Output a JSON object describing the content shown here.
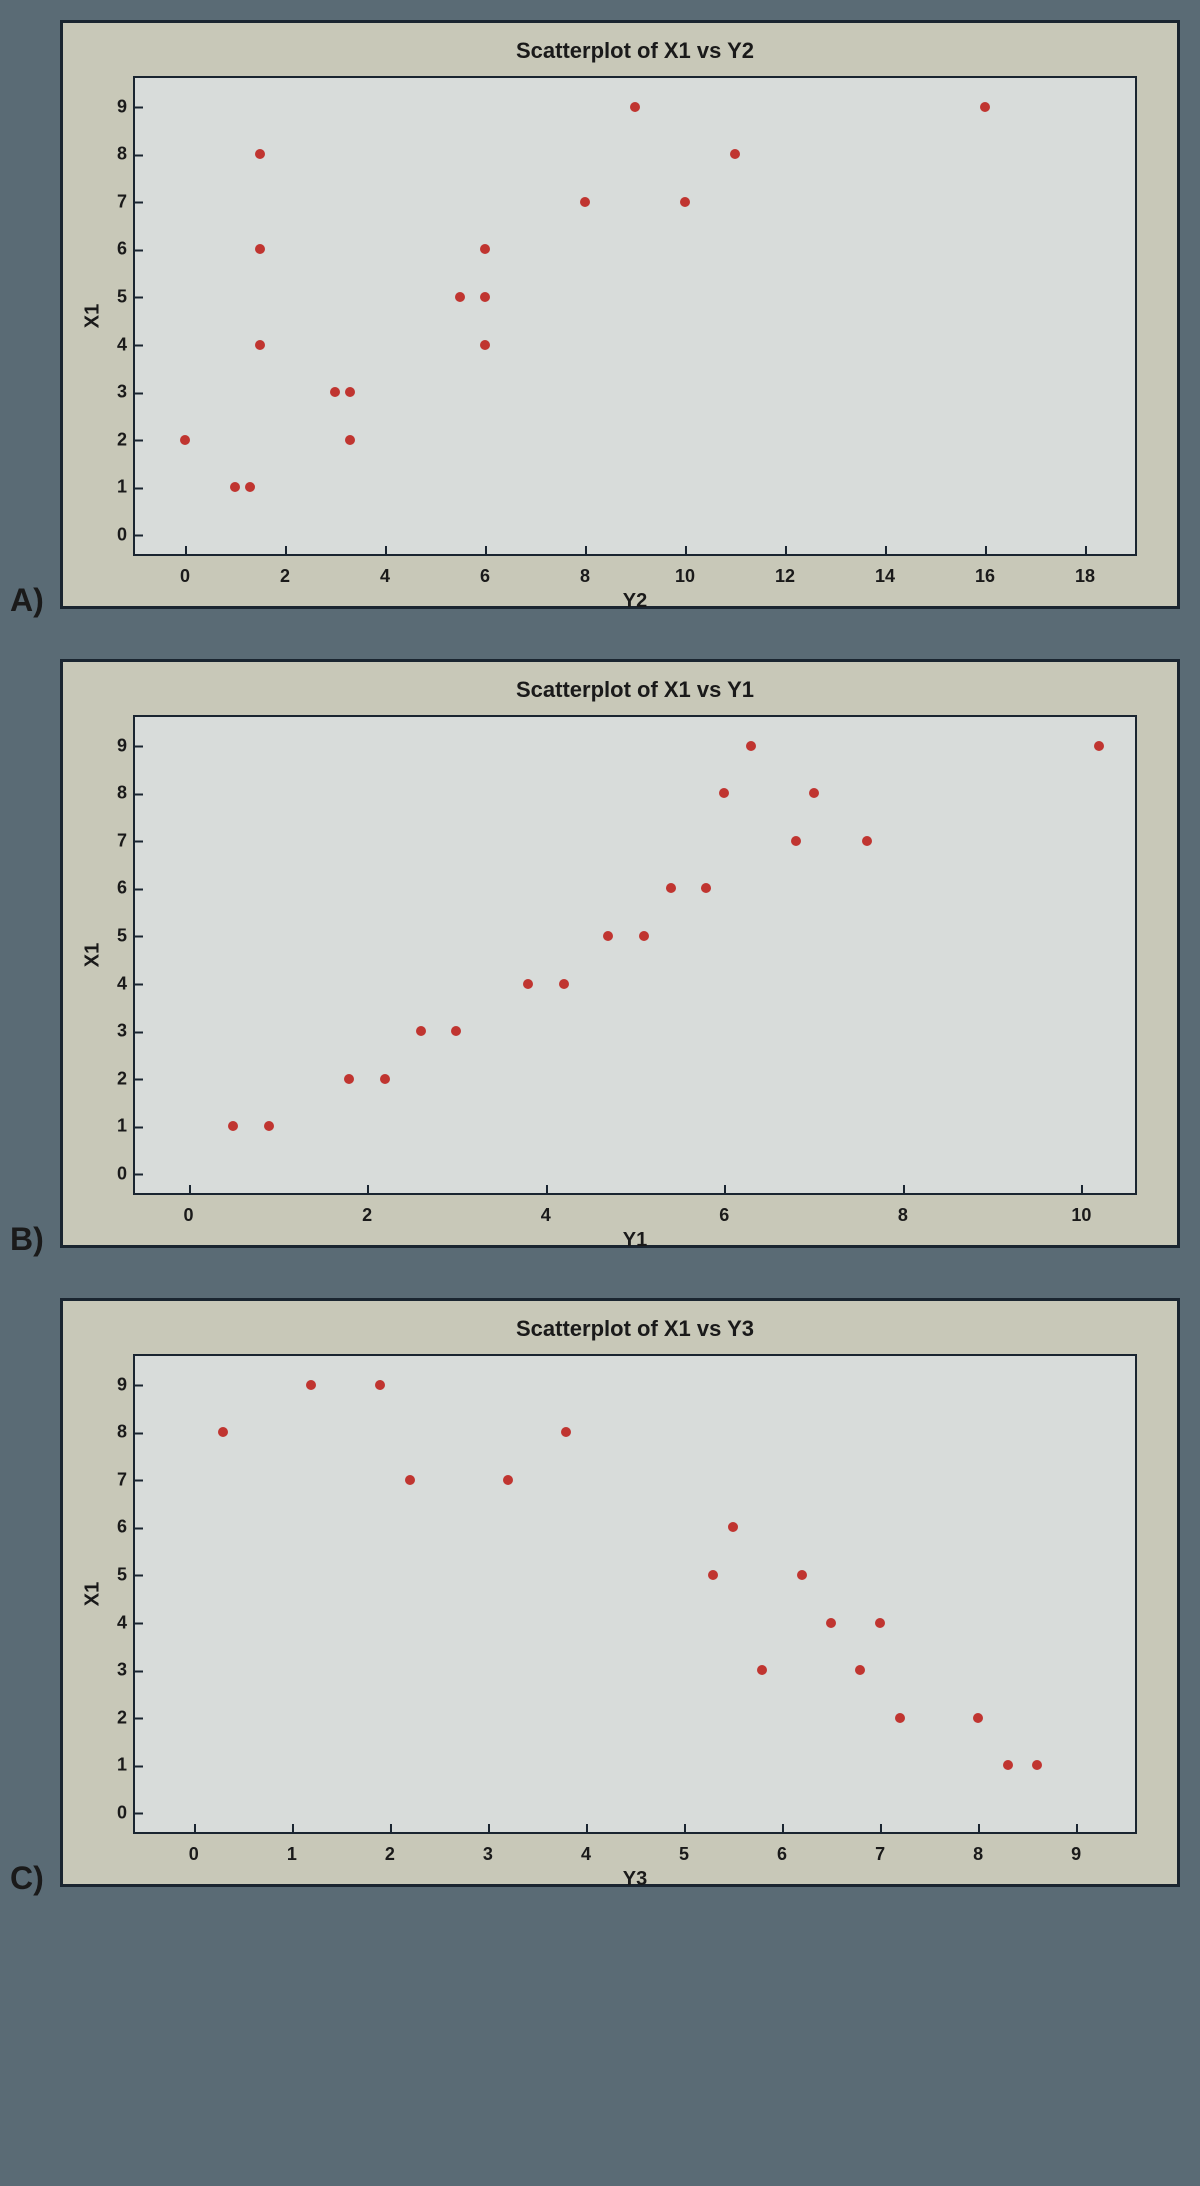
{
  "charts": [
    {
      "label": "A)",
      "title": "Scatterplot of X1 vs Y2",
      "xlabel": "Y2",
      "ylabel": "X1",
      "xlim": [
        -1,
        19
      ],
      "ylim": [
        -0.4,
        9.6
      ],
      "xticks": [
        0,
        2,
        4,
        6,
        8,
        10,
        12,
        14,
        16,
        18
      ],
      "yticks": [
        0,
        1,
        2,
        3,
        4,
        5,
        6,
        7,
        8,
        9
      ],
      "point_color": "#c03530",
      "background_color": "#d8dcda",
      "frame_color": "#c8c8b8",
      "border_color": "#1a2530",
      "points": [
        [
          0,
          2
        ],
        [
          1,
          1
        ],
        [
          1.3,
          1
        ],
        [
          1.5,
          8
        ],
        [
          1.5,
          6
        ],
        [
          1.5,
          4
        ],
        [
          3,
          3
        ],
        [
          3.3,
          3
        ],
        [
          3.3,
          2
        ],
        [
          5.5,
          5
        ],
        [
          6,
          6
        ],
        [
          6,
          5
        ],
        [
          6,
          4
        ],
        [
          8,
          7
        ],
        [
          9,
          9
        ],
        [
          10,
          7
        ],
        [
          11,
          8
        ],
        [
          16,
          9
        ]
      ]
    },
    {
      "label": "B)",
      "title": "Scatterplot of X1 vs Y1",
      "xlabel": "Y1",
      "ylabel": "X1",
      "xlim": [
        -0.6,
        10.6
      ],
      "ylim": [
        -0.4,
        9.6
      ],
      "xticks": [
        0,
        2,
        4,
        6,
        8,
        10
      ],
      "yticks": [
        0,
        1,
        2,
        3,
        4,
        5,
        6,
        7,
        8,
        9
      ],
      "point_color": "#c03530",
      "background_color": "#d8dcda",
      "frame_color": "#c8c8b8",
      "border_color": "#1a2530",
      "points": [
        [
          0.5,
          1
        ],
        [
          0.9,
          1
        ],
        [
          1.8,
          2
        ],
        [
          2.2,
          2
        ],
        [
          2.6,
          3
        ],
        [
          3.0,
          3
        ],
        [
          3.8,
          4
        ],
        [
          4.2,
          4
        ],
        [
          4.7,
          5
        ],
        [
          5.1,
          5
        ],
        [
          5.4,
          6
        ],
        [
          5.8,
          6
        ],
        [
          6.0,
          8
        ],
        [
          6.3,
          9
        ],
        [
          6.8,
          7
        ],
        [
          7.0,
          8
        ],
        [
          7.6,
          7
        ],
        [
          10.2,
          9
        ]
      ]
    },
    {
      "label": "C)",
      "title": "Scatterplot of X1 vs Y3",
      "xlabel": "Y3",
      "ylabel": "X1",
      "xlim": [
        -0.6,
        9.6
      ],
      "ylim": [
        -0.4,
        9.6
      ],
      "xticks": [
        0,
        1,
        2,
        3,
        4,
        5,
        6,
        7,
        8,
        9
      ],
      "yticks": [
        0,
        1,
        2,
        3,
        4,
        5,
        6,
        7,
        8,
        9
      ],
      "point_color": "#c03530",
      "background_color": "#d8dcda",
      "frame_color": "#c8c8b8",
      "border_color": "#1a2530",
      "points": [
        [
          0.3,
          8
        ],
        [
          1.2,
          9
        ],
        [
          1.9,
          9
        ],
        [
          2.2,
          7
        ],
        [
          3.2,
          7
        ],
        [
          3.8,
          8
        ],
        [
          5.3,
          5
        ],
        [
          5.5,
          6
        ],
        [
          5.8,
          3
        ],
        [
          6.2,
          5
        ],
        [
          6.5,
          4
        ],
        [
          6.8,
          3
        ],
        [
          7.0,
          4
        ],
        [
          7.2,
          2
        ],
        [
          8.0,
          2
        ],
        [
          8.3,
          1
        ],
        [
          8.6,
          1
        ]
      ]
    }
  ]
}
